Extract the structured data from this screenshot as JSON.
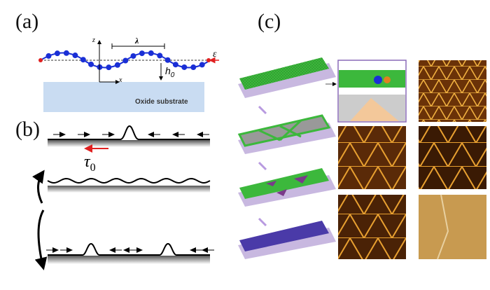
{
  "panels": {
    "a": {
      "label": "(a)",
      "axis_z": "z",
      "axis_x": "x",
      "wavelength": "λ",
      "strain": "ε",
      "height": "h",
      "height_sub": "0",
      "substrate": "Oxide substrate"
    },
    "b": {
      "label": "(b)",
      "shear_stress": "τ",
      "shear_stress_sub": "0"
    },
    "c": {
      "label": "(c)"
    }
  },
  "colors": {
    "atoms": "#1a2fd6",
    "strain_arrow": "#e02020",
    "substrate": "#c9dcf2",
    "graphene": "#3cb83c",
    "afm": "#a0520a",
    "plate": "#c8b8e0"
  }
}
